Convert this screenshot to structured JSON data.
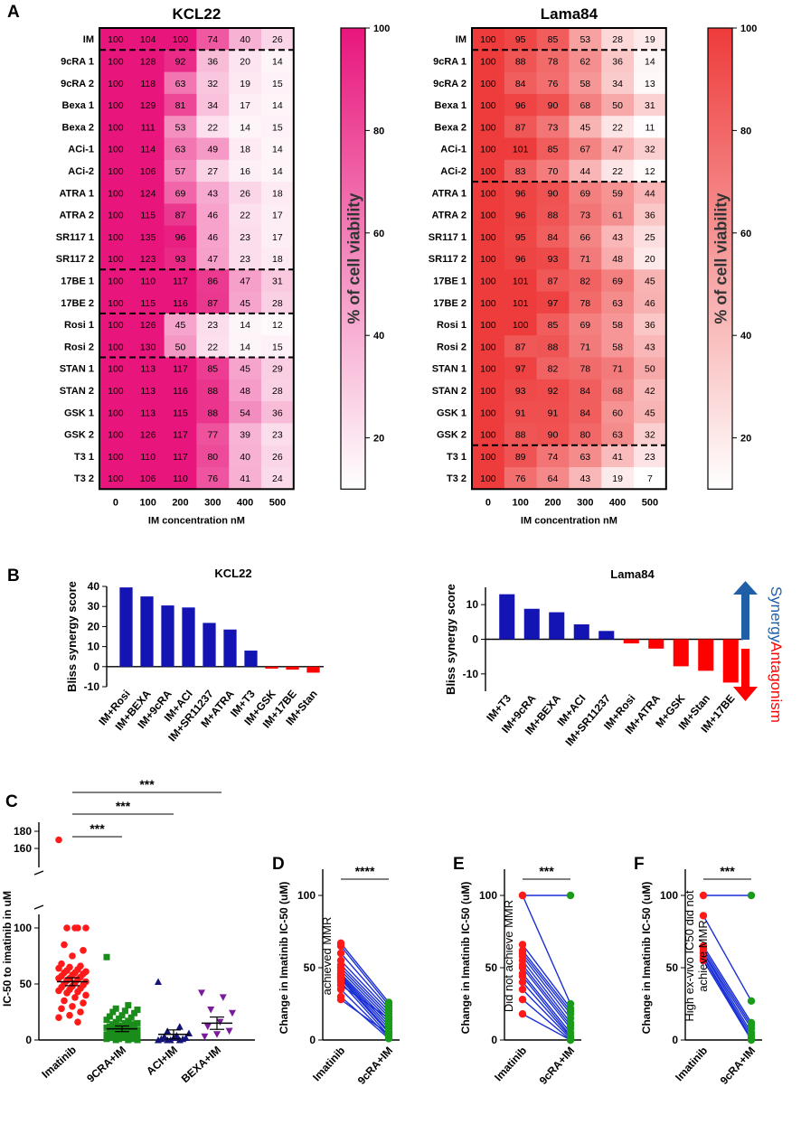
{
  "panel_labels": [
    "A",
    "B",
    "C",
    "D",
    "E",
    "F"
  ],
  "chart_data": [
    {
      "id": "kcl22_heatmap",
      "type": "heatmap",
      "title": "KCL22",
      "xlabel": "IM concentration nM",
      "categories": [
        "0",
        "100",
        "200",
        "300",
        "400",
        "500"
      ],
      "rows": [
        "IM",
        "9cRA 1",
        "9cRA 2",
        "Bexa 1",
        "Bexa 2",
        "ACi-1",
        "ACi-2",
        "ATRA 1",
        "ATRA 2",
        "SR117 1",
        "SR117 2",
        "17BE 1",
        "17BE 2",
        "Rosi 1",
        "Rosi 2",
        "STAN 1",
        "STAN 2",
        "GSK 1",
        "GSK 2",
        "T3 1",
        "T3 2"
      ],
      "values": [
        [
          100,
          104,
          100,
          74,
          40,
          26
        ],
        [
          100,
          128,
          92,
          36,
          20,
          14
        ],
        [
          100,
          118,
          63,
          32,
          19,
          15
        ],
        [
          100,
          129,
          81,
          34,
          17,
          14
        ],
        [
          100,
          111,
          53,
          22,
          14,
          15
        ],
        [
          100,
          114,
          63,
          49,
          18,
          14
        ],
        [
          100,
          106,
          57,
          27,
          16,
          14
        ],
        [
          100,
          124,
          69,
          43,
          26,
          18
        ],
        [
          100,
          115,
          87,
          46,
          22,
          17
        ],
        [
          100,
          135,
          96,
          46,
          23,
          17
        ],
        [
          100,
          123,
          93,
          47,
          23,
          18
        ],
        [
          100,
          110,
          117,
          86,
          47,
          31
        ],
        [
          100,
          115,
          116,
          87,
          45,
          28
        ],
        [
          100,
          126,
          45,
          23,
          14,
          12
        ],
        [
          100,
          130,
          50,
          22,
          14,
          15
        ],
        [
          100,
          113,
          117,
          85,
          45,
          29
        ],
        [
          100,
          113,
          116,
          88,
          48,
          28
        ],
        [
          100,
          113,
          115,
          88,
          54,
          36
        ],
        [
          100,
          126,
          117,
          77,
          39,
          23
        ],
        [
          100,
          110,
          117,
          80,
          40,
          26
        ],
        [
          100,
          106,
          110,
          76,
          41,
          24
        ]
      ],
      "group_separators_after_row": [
        0,
        10,
        12,
        14
      ],
      "colorbar": {
        "label": "% of cell viability",
        "ticks": [
          100,
          80,
          60,
          40,
          20
        ],
        "range": [
          10,
          100
        ],
        "color": "#e8167c"
      }
    },
    {
      "id": "lama84_heatmap",
      "type": "heatmap",
      "title": "Lama84",
      "xlabel": "IM concentration nM",
      "categories": [
        "0",
        "100",
        "200",
        "300",
        "400",
        "500"
      ],
      "rows": [
        "IM",
        "9cRA 1",
        "9cRA 2",
        "Bexa 1",
        "Bexa 2",
        "ACi-1",
        "ACi-2",
        "ATRA 1",
        "ATRA 2",
        "SR117 1",
        "SR117 2",
        "17BE 1",
        "17BE 2",
        "Rosi 1",
        "Rosi 2",
        "STAN 1",
        "STAN 2",
        "GSK 1",
        "GSK 2",
        "T3 1",
        "T3 2"
      ],
      "values": [
        [
          100,
          95,
          85,
          53,
          28,
          19
        ],
        [
          100,
          88,
          78,
          62,
          36,
          14
        ],
        [
          100,
          84,
          76,
          58,
          34,
          13
        ],
        [
          100,
          96,
          90,
          68,
          50,
          31
        ],
        [
          100,
          87,
          73,
          45,
          22,
          11
        ],
        [
          100,
          101,
          85,
          67,
          47,
          32
        ],
        [
          100,
          83,
          70,
          44,
          22,
          12
        ],
        [
          100,
          96,
          90,
          69,
          59,
          44
        ],
        [
          100,
          96,
          88,
          73,
          61,
          36
        ],
        [
          100,
          95,
          84,
          66,
          43,
          25
        ],
        [
          100,
          96,
          93,
          71,
          48,
          20
        ],
        [
          100,
          101,
          87,
          82,
          69,
          45
        ],
        [
          100,
          101,
          97,
          78,
          63,
          46
        ],
        [
          100,
          100,
          85,
          69,
          58,
          36
        ],
        [
          100,
          87,
          88,
          71,
          58,
          43
        ],
        [
          100,
          97,
          82,
          78,
          71,
          50
        ],
        [
          100,
          93,
          92,
          84,
          68,
          42
        ],
        [
          100,
          91,
          91,
          84,
          60,
          45
        ],
        [
          100,
          88,
          90,
          80,
          63,
          32
        ],
        [
          100,
          89,
          74,
          63,
          41,
          23
        ],
        [
          100,
          76,
          64,
          43,
          19,
          7
        ]
      ],
      "group_separators_after_row": [
        0,
        6,
        18
      ],
      "colorbar": {
        "label": "% of cell viability",
        "ticks": [
          100,
          80,
          60,
          40,
          20
        ],
        "range": [
          10,
          100
        ],
        "color": "#ee3b3b"
      }
    },
    {
      "id": "kcl22_bliss",
      "type": "bar",
      "title": "KCL22",
      "ylabel": "Bliss synergy score",
      "categories": [
        "IM+Rosi",
        "IM+BEXA",
        "IM+9cRA",
        "IM+ACI",
        "IM+SR11237",
        "M+ATRA",
        "IM+T3",
        "IM+GSK",
        "IM+17BE",
        "IM+Stan"
      ],
      "values": [
        39.5,
        35,
        30.5,
        29.5,
        21.8,
        18.5,
        8,
        -1,
        -1.5,
        -3
      ],
      "ylim": [
        -10,
        40
      ],
      "yticks": [
        "40",
        "30",
        "20",
        "10",
        "0",
        "-10"
      ],
      "positive_color": "#1414b4",
      "negative_color": "#ff0000"
    },
    {
      "id": "lama84_bliss",
      "type": "bar",
      "title": "Lama84",
      "ylabel": "Bliss synergy score",
      "categories": [
        "IM+T3",
        "IM+9cRA",
        "IM+BEXA",
        "IM+ACI",
        "IM+SR11237",
        "IM+Rosi",
        "IM+ATRA",
        "M+GSK",
        "IM+Stan",
        "IM+17BE"
      ],
      "values": [
        13,
        8.8,
        7.8,
        4.3,
        2.4,
        -1.2,
        -2.7,
        -7.8,
        -9.1,
        -12.5
      ],
      "ylim": [
        -15,
        15
      ],
      "yticks": [
        "10",
        "0",
        "-10"
      ],
      "positive_color": "#1414b4",
      "negative_color": "#ff0000",
      "legend": {
        "synergy": "Synergy",
        "antagonism": "Antagonism",
        "synergy_color": "#1f5fa8",
        "antagonism_color": "#ff0000"
      }
    },
    {
      "id": "panel_c_scatter",
      "type": "scatter",
      "ylabel": "IC-50 to imatinib in uM",
      "categories": [
        "Imatinib",
        "9CRA+IM",
        "ACI+IM",
        "BEXA+IM"
      ],
      "yticks_lower": [
        "0",
        "50",
        "100"
      ],
      "yticks_upper": [
        "160",
        "180"
      ],
      "means": [
        52,
        10,
        5,
        15
      ],
      "sem": [
        3.5,
        2.5,
        4,
        5.5
      ],
      "significance": [
        "***",
        "***",
        "***"
      ],
      "series": [
        {
          "name": "Imatinib",
          "color": "#ff1a1a",
          "marker": "circle",
          "values": [
            170,
            100,
            100,
            100,
            100,
            85,
            80,
            75,
            68,
            66,
            65,
            64,
            63,
            62,
            61,
            60,
            60,
            59,
            58,
            57,
            56,
            55,
            55,
            54,
            53,
            52,
            51,
            50,
            49,
            48,
            47,
            46,
            45,
            44,
            43,
            42,
            40,
            38,
            35,
            33,
            30,
            28,
            25,
            22,
            20,
            16
          ]
        },
        {
          "name": "9CRA+IM",
          "color": "#1a8c1a",
          "marker": "square",
          "values": [
            74,
            31,
            28,
            27,
            26,
            25,
            24,
            22,
            21,
            20,
            19,
            18,
            17,
            16,
            15,
            15,
            14,
            14,
            13,
            12,
            12,
            11,
            11,
            10,
            10,
            9,
            9,
            8,
            8,
            7,
            7,
            6,
            6,
            5,
            5,
            4,
            4,
            3,
            3,
            2,
            2,
            2,
            1,
            1,
            1,
            0,
            0,
            0
          ]
        },
        {
          "name": "ACI+IM",
          "color": "#141478",
          "marker": "triangle",
          "values": [
            52,
            12,
            8,
            6,
            4,
            3,
            2,
            2,
            1,
            1,
            0,
            0,
            0,
            0
          ]
        },
        {
          "name": "BEXA+IM",
          "color": "#7a1a9c",
          "marker": "triangle-down",
          "values": [
            42,
            38,
            27,
            24,
            16,
            12,
            8,
            5,
            3
          ]
        }
      ]
    },
    {
      "id": "panel_d",
      "type": "line",
      "ylabel": "Change in Imatinib IC-50 (uM)",
      "annotation": "achieved MMR",
      "significance": "****",
      "categories": [
        "Imatinib",
        "9cRA+IM"
      ],
      "pairs": [
        [
          67,
          26
        ],
        [
          65,
          24
        ],
        [
          60,
          22
        ],
        [
          55,
          20
        ],
        [
          52,
          18
        ],
        [
          50,
          16
        ],
        [
          48,
          14
        ],
        [
          46,
          12
        ],
        [
          45,
          10
        ],
        [
          44,
          8
        ],
        [
          43,
          6
        ],
        [
          42,
          5
        ],
        [
          40,
          3
        ],
        [
          35,
          2
        ],
        [
          30,
          1
        ],
        [
          28,
          4
        ],
        [
          38,
          15
        ]
      ]
    },
    {
      "id": "panel_e",
      "type": "line",
      "ylabel": "Change in Imatinib IC-50 (uM)",
      "annotation": "Did not achieve MMR",
      "significance": "***",
      "categories": [
        "Imatinib",
        "9cRA+IM"
      ],
      "pairs": [
        [
          100,
          100
        ],
        [
          100,
          25
        ],
        [
          66,
          22
        ],
        [
          62,
          20
        ],
        [
          60,
          18
        ],
        [
          58,
          15
        ],
        [
          55,
          12
        ],
        [
          52,
          10
        ],
        [
          50,
          8
        ],
        [
          46,
          5
        ],
        [
          44,
          3
        ],
        [
          40,
          2
        ],
        [
          35,
          1
        ],
        [
          28,
          0
        ],
        [
          18,
          0
        ]
      ]
    },
    {
      "id": "panel_f",
      "type": "line",
      "ylabel": "Change in Imatinib IC-50 (uM)",
      "annotation": "High ex-vivo IC50 did not achieve MMR",
      "annotation_lines": [
        "High ex-vivo IC50 did not",
        "achieve MMR"
      ],
      "significance": "***",
      "categories": [
        "Imatinib",
        "9cRA+IM"
      ],
      "pairs": [
        [
          100,
          100
        ],
        [
          86,
          27
        ],
        [
          65,
          12
        ],
        [
          63,
          10
        ],
        [
          61,
          8
        ],
        [
          60,
          5
        ],
        [
          58,
          3
        ],
        [
          57,
          1
        ],
        [
          55,
          0
        ]
      ]
    }
  ]
}
